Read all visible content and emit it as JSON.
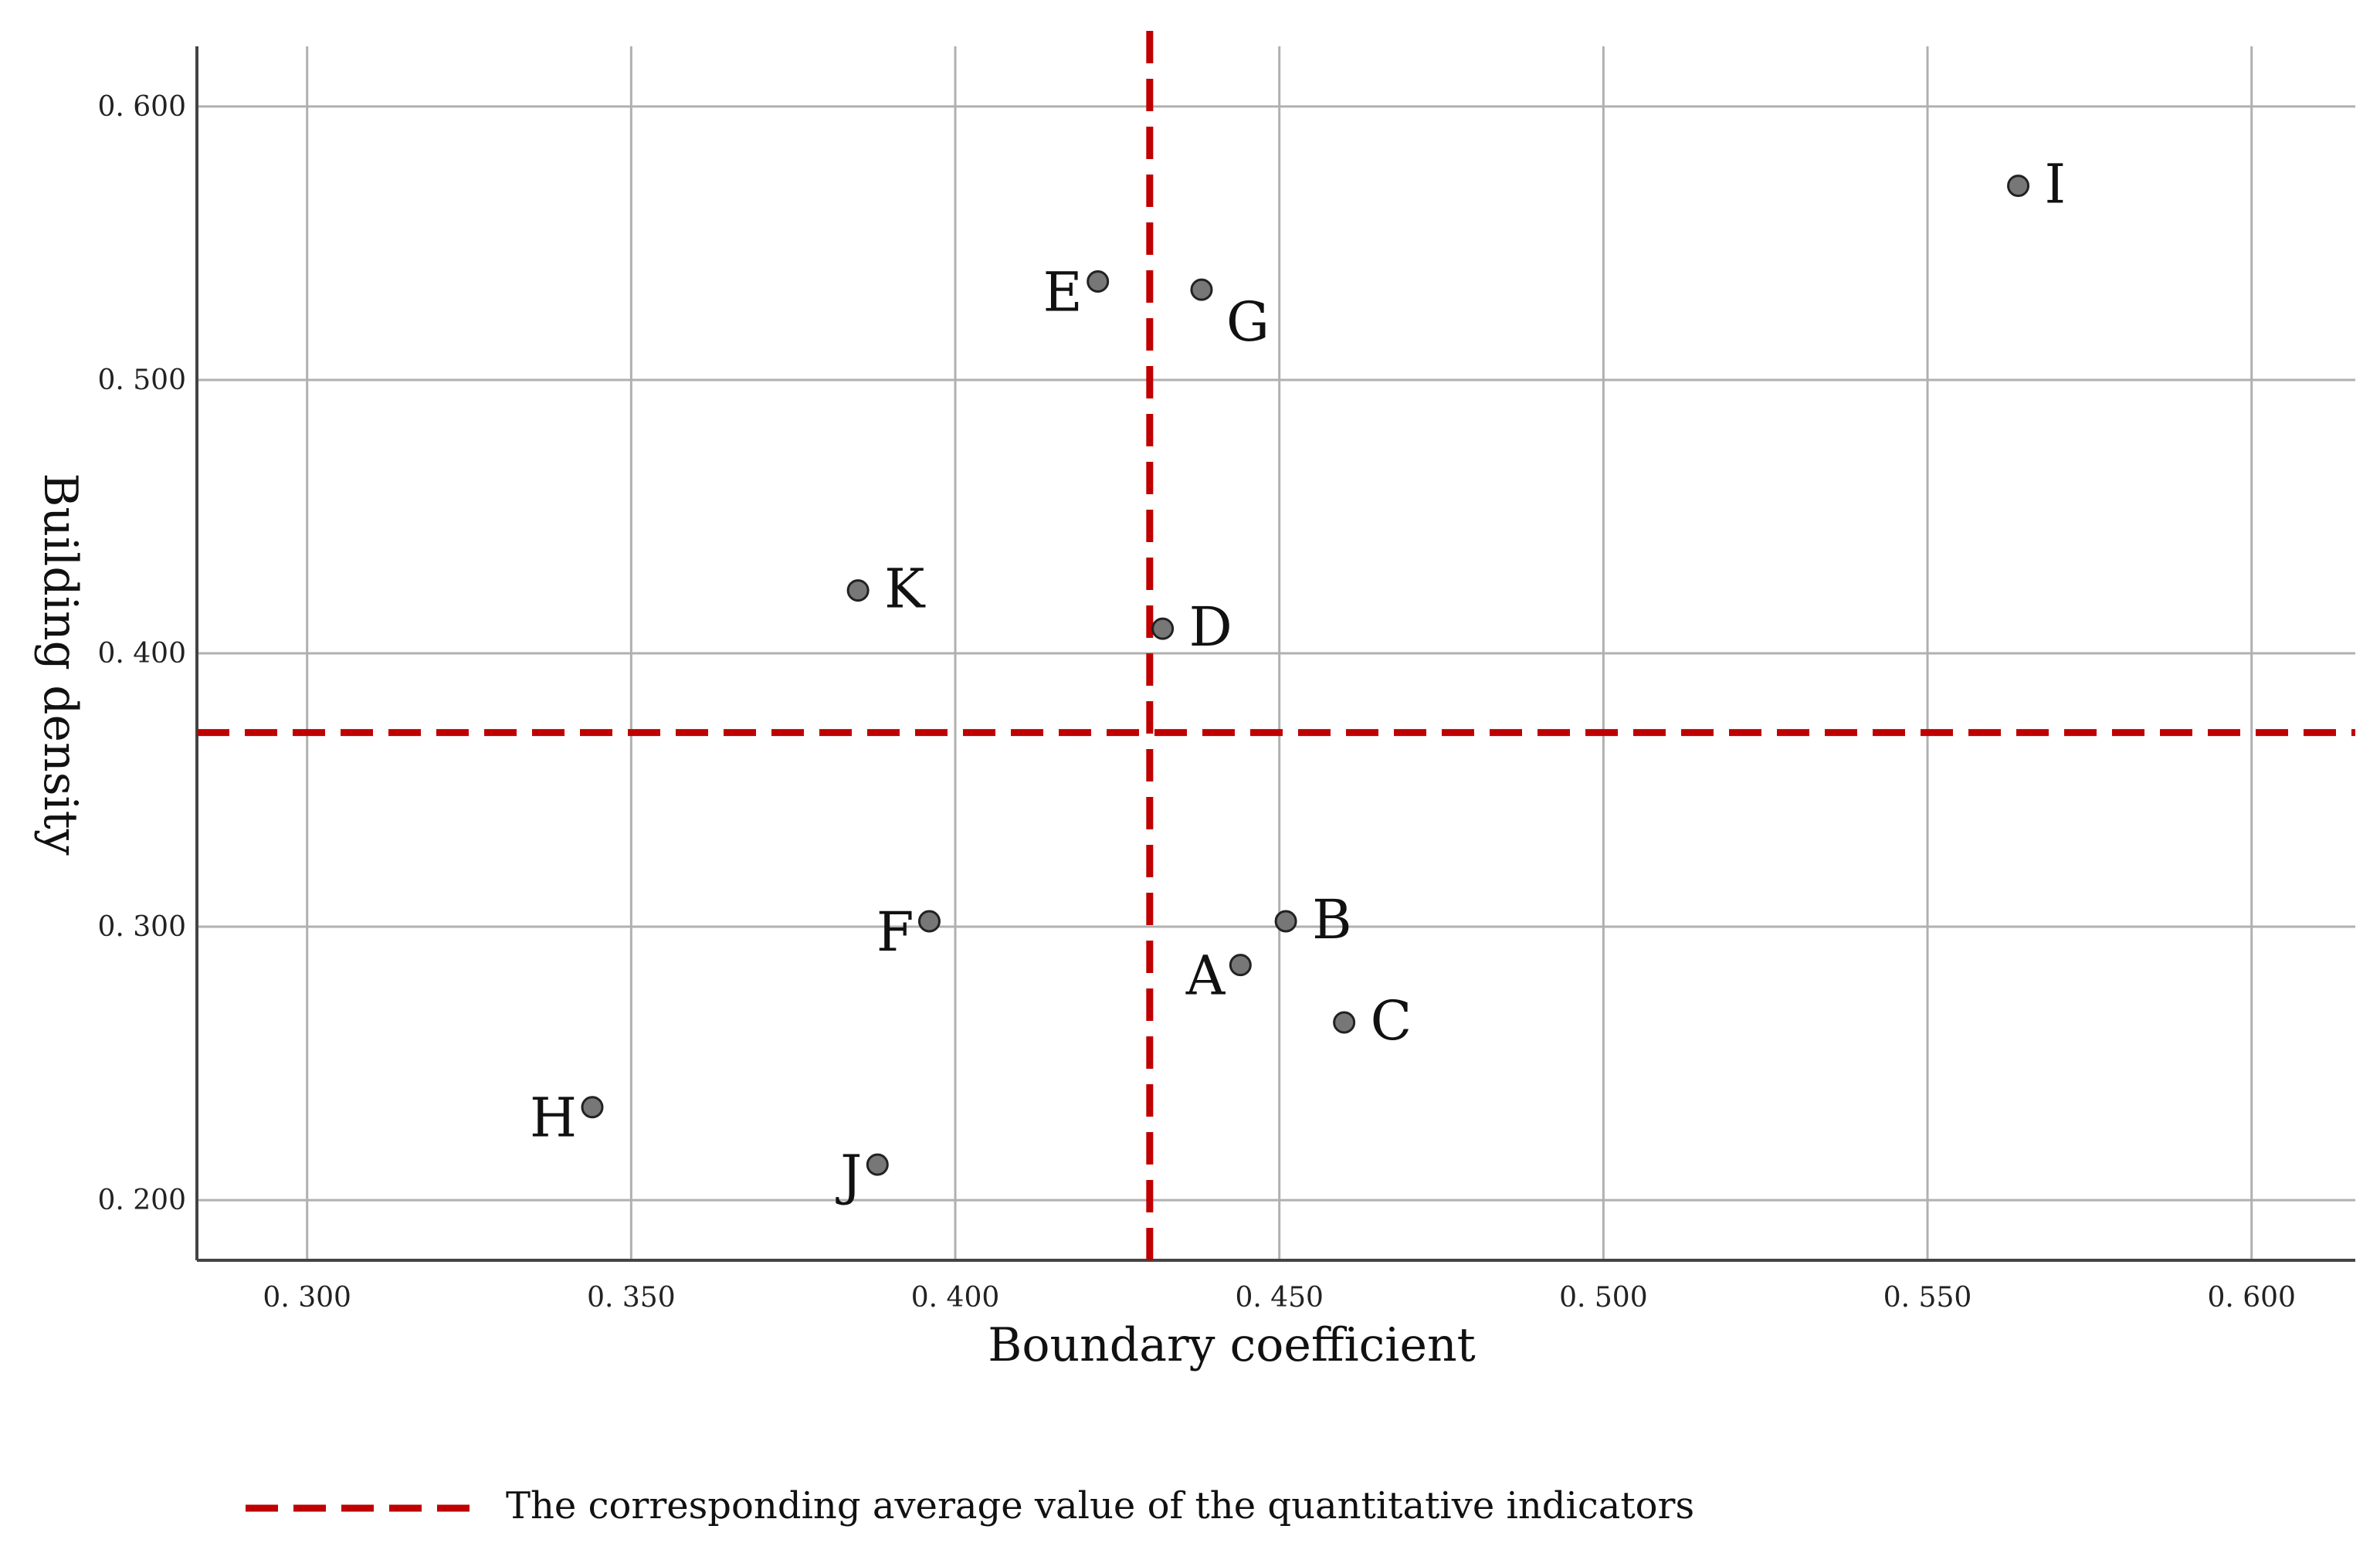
{
  "chart_data": {
    "type": "scatter",
    "title": "",
    "xlabel": "Boundary coefficient",
    "ylabel": "Building density",
    "xlim": [
      0.283,
      0.616
    ],
    "ylim": [
      0.178,
      0.622
    ],
    "xticks": [
      0.3,
      0.35,
      0.4,
      0.45,
      0.5,
      0.55,
      0.6
    ],
    "yticks": [
      0.2,
      0.3,
      0.4,
      0.5,
      0.6
    ],
    "xtick_labels": [
      "0. 300",
      "0. 350",
      "0. 400",
      "0. 450",
      "0. 500",
      "0. 550",
      "0. 600"
    ],
    "ytick_labels": [
      "0. 200",
      "0. 300",
      "0. 400",
      "0. 500",
      "0. 600"
    ],
    "grid": true,
    "points": [
      {
        "label": "A",
        "x": 0.444,
        "y": 0.286,
        "label_side": "left"
      },
      {
        "label": "B",
        "x": 0.451,
        "y": 0.302,
        "label_side": "right"
      },
      {
        "label": "C",
        "x": 0.46,
        "y": 0.265,
        "label_side": "right"
      },
      {
        "label": "D",
        "x": 0.432,
        "y": 0.409,
        "label_side": "right"
      },
      {
        "label": "E",
        "x": 0.422,
        "y": 0.536,
        "label_side": "left"
      },
      {
        "label": "F",
        "x": 0.396,
        "y": 0.302,
        "label_side": "left"
      },
      {
        "label": "G",
        "x": 0.438,
        "y": 0.533,
        "label_side": "right-below"
      },
      {
        "label": "H",
        "x": 0.344,
        "y": 0.234,
        "label_side": "left"
      },
      {
        "label": "I",
        "x": 0.564,
        "y": 0.571,
        "label_side": "right"
      },
      {
        "label": "J",
        "x": 0.388,
        "y": 0.213,
        "label_side": "left"
      },
      {
        "label": "K",
        "x": 0.385,
        "y": 0.423,
        "label_side": "right"
      }
    ],
    "reference_lines": {
      "x_mean": 0.43,
      "y_mean": 0.371,
      "color": "#c00000",
      "style": "dashed"
    },
    "legend": {
      "placement": "bottom",
      "entries": [
        {
          "label": "The corresponding average value of the quantitative indicators",
          "style": "dashed",
          "color": "#c00000"
        }
      ]
    },
    "marker_color": "#777777",
    "grid_color": "#b0b0b0",
    "axis_color": "#444444"
  }
}
